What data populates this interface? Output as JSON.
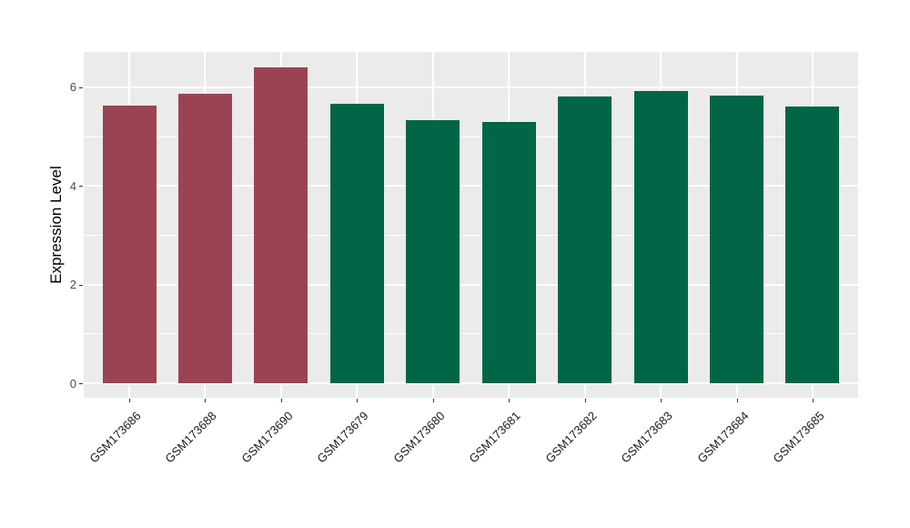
{
  "figure": {
    "background": "#FFFFFF",
    "panel_background": "#EBEBEB",
    "grid_color": "#FFFFFF",
    "tick_color": "#333333",
    "axis_text_color": "#4D4D4D"
  },
  "chart_data": {
    "type": "bar",
    "title": "",
    "xlabel": "",
    "ylabel": "Expression Level",
    "categories": [
      "GSM173686",
      "GSM173688",
      "GSM173690",
      "GSM173679",
      "GSM173680",
      "GSM173681",
      "GSM173682",
      "GSM173683",
      "GSM173684",
      "GSM173685"
    ],
    "values": [
      5.62,
      5.87,
      6.4,
      5.66,
      5.33,
      5.3,
      5.81,
      5.92,
      5.83,
      5.61
    ],
    "bar_colors": [
      "#9A4453",
      "#9A4453",
      "#9A4453",
      "#006647",
      "#006647",
      "#006647",
      "#006647",
      "#006647",
      "#006647",
      "#006647"
    ],
    "group_colors": {
      "red": "#9A4453",
      "green": "#006647"
    },
    "yticks": [
      0,
      2,
      4,
      6
    ],
    "yticks_minor": [
      1,
      3,
      5
    ],
    "ylim": [
      -0.3,
      6.72
    ],
    "grid": true,
    "legend_position": "none",
    "x_label_rotation_deg": 45
  }
}
